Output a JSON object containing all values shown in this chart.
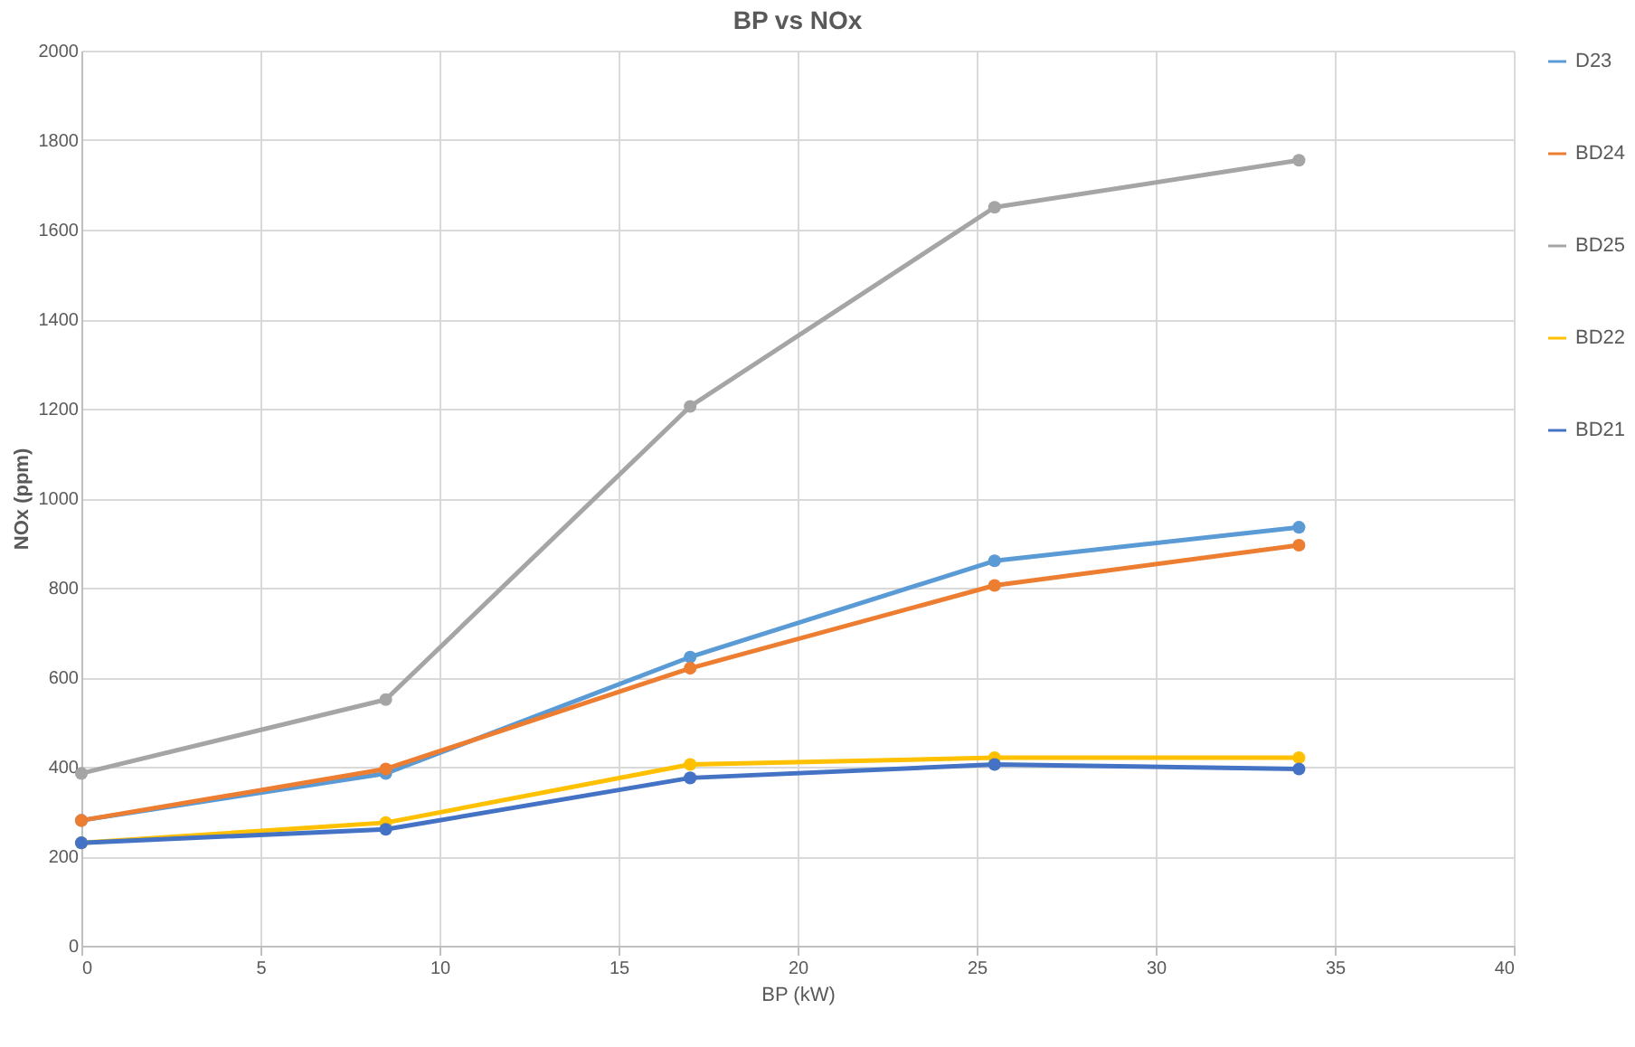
{
  "chart_data": {
    "type": "line",
    "title": "BP vs NOx",
    "xlabel": "BP (kW)",
    "ylabel": "NOx (ppm)",
    "x": [
      0,
      8.5,
      17,
      25.5,
      34
    ],
    "series": [
      {
        "name": "D23",
        "color": "#5b9bd5",
        "values": [
          280,
          385,
          645,
          860,
          935
        ]
      },
      {
        "name": "BD24",
        "color": "#ed7d31",
        "values": [
          280,
          395,
          620,
          805,
          895
        ]
      },
      {
        "name": "BD25",
        "color": "#a5a5a5",
        "values": [
          385,
          550,
          1205,
          1650,
          1755
        ]
      },
      {
        "name": "BD22",
        "color": "#ffc000",
        "values": [
          230,
          275,
          405,
          420,
          420
        ]
      },
      {
        "name": "BD21",
        "color": "#4472c4",
        "values": [
          230,
          260,
          375,
          405,
          395
        ]
      }
    ],
    "xlim": [
      0,
      40
    ],
    "xticks": [
      0,
      5,
      10,
      15,
      20,
      25,
      30,
      35,
      40
    ],
    "ylim": [
      0,
      2000
    ],
    "yticks": [
      0,
      200,
      400,
      600,
      800,
      1000,
      1200,
      1400,
      1600,
      1800,
      2000
    ],
    "grid": true,
    "legend": "right",
    "marker": "circle",
    "line_style": "solid"
  }
}
